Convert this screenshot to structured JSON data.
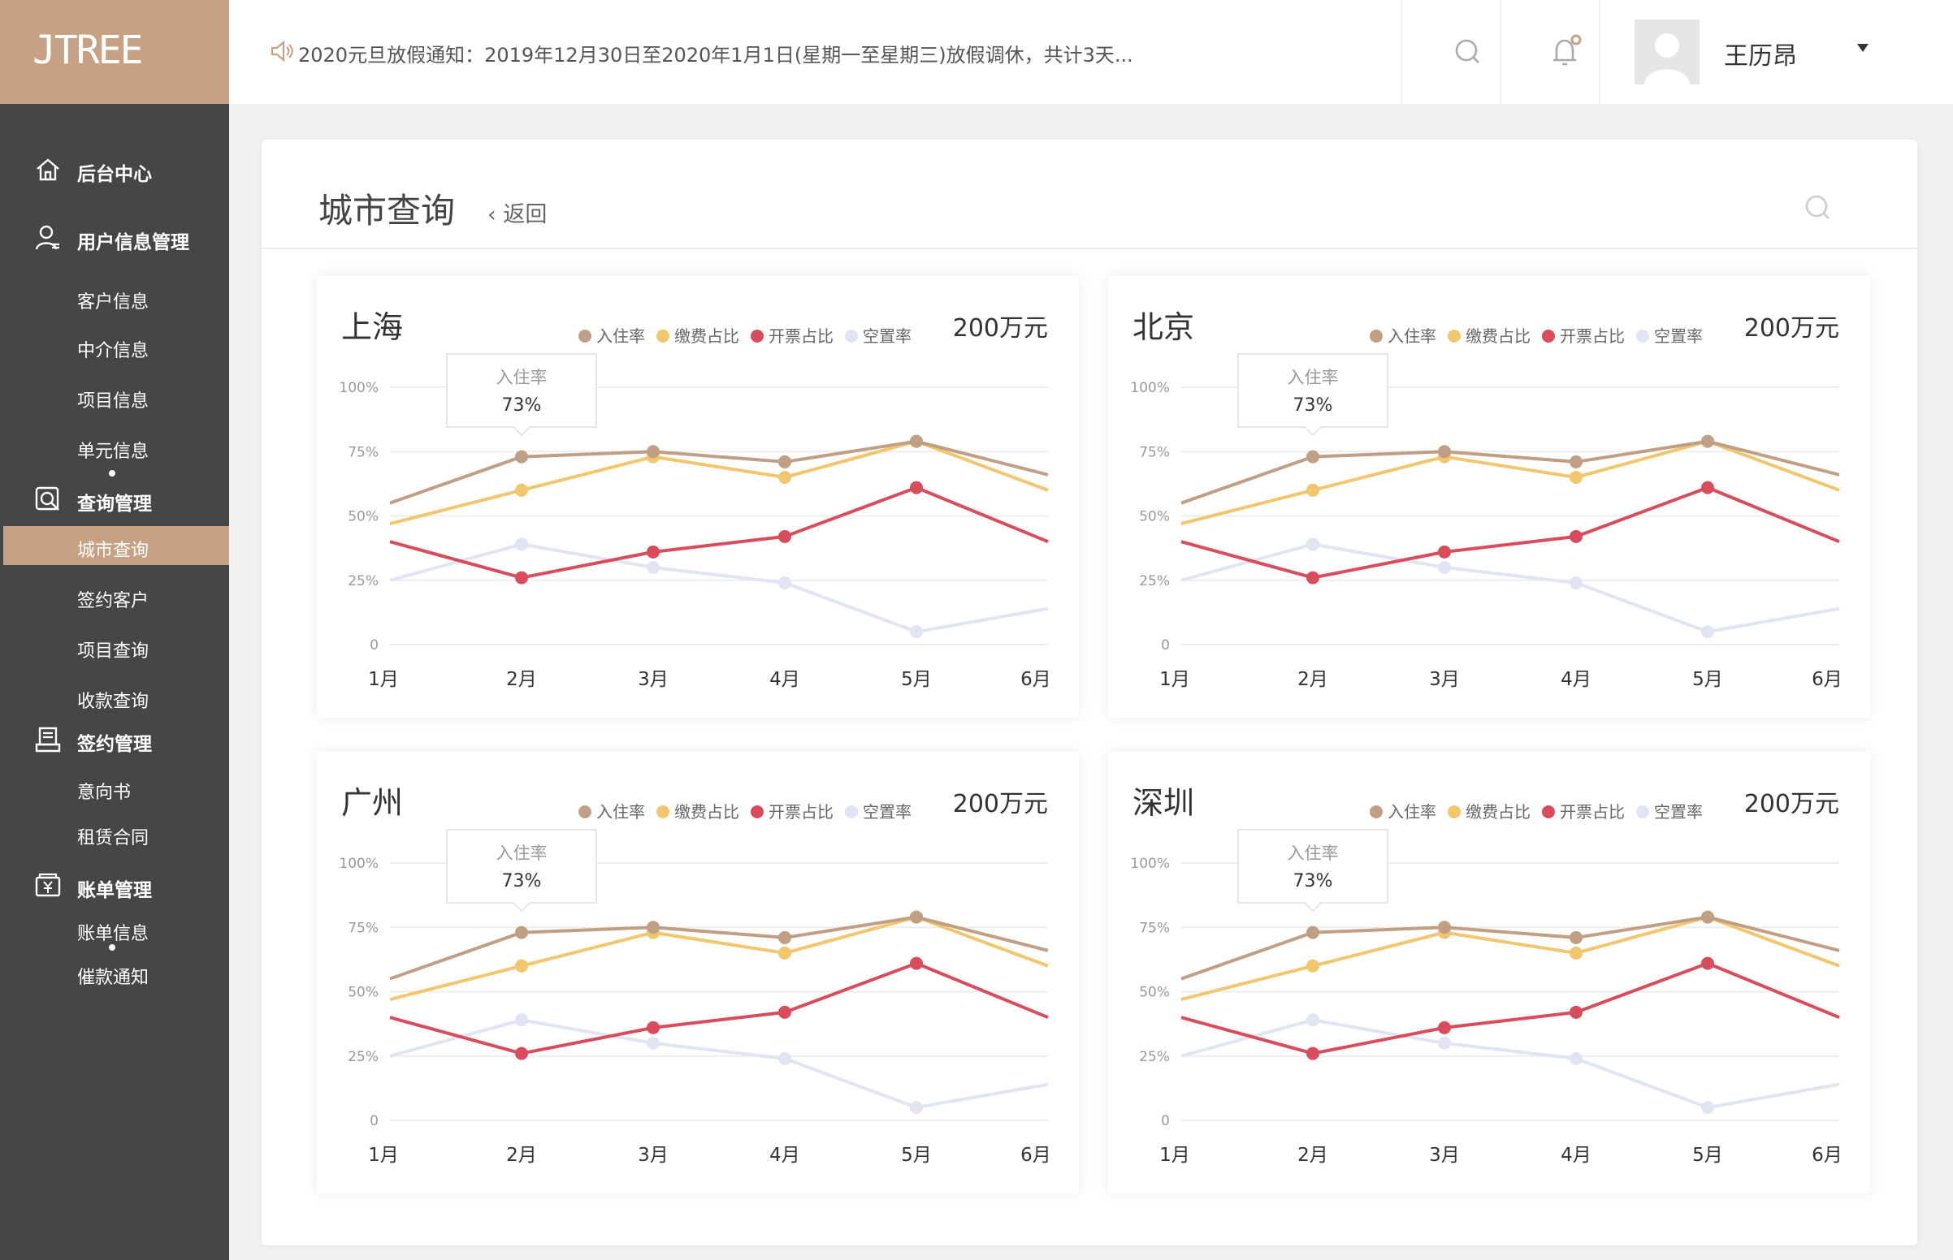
{
  "logo": {
    "text": "JTREE"
  },
  "sidebar": {
    "groups": [
      {
        "label": "后台中心",
        "icon": "home-icon"
      },
      {
        "label": "用户信息管理",
        "icon": "user-icon",
        "items": [
          "客户信息",
          "中介信息",
          "项目信息",
          "单元信息"
        ]
      },
      {
        "label": "查询管理",
        "icon": "query-icon",
        "items": [
          "城市查询",
          "签约客户",
          "项目查询",
          "收款查询"
        ],
        "active_item": "城市查询"
      },
      {
        "label": "签约管理",
        "icon": "contract-icon",
        "items": [
          "意向书",
          "租赁合同"
        ]
      },
      {
        "label": "账单管理",
        "icon": "bill-icon",
        "items": [
          "账单信息",
          "催款通知"
        ]
      }
    ]
  },
  "topbar": {
    "notice": "2020元旦放假通知：2019年12月30日至2020年1月1日(星期一至星期三)放假调休，共计3天...",
    "user_name": "王历昂"
  },
  "page": {
    "title": "城市查询",
    "back_label": "返回"
  },
  "legend": [
    {
      "name": "入住率",
      "color": "#c09f84"
    },
    {
      "name": "缴费占比",
      "color": "#f2c66c"
    },
    {
      "name": "开票占比",
      "color": "#d94c5c"
    },
    {
      "name": "空置率",
      "color": "#dfe5f3"
    }
  ],
  "cities": [
    {
      "name": "上海",
      "amount": "200万元"
    },
    {
      "name": "北京",
      "amount": "200万元"
    },
    {
      "name": "广州",
      "amount": "200万元"
    },
    {
      "name": "深圳",
      "amount": "200万元"
    }
  ],
  "chart_data": {
    "type": "line",
    "categories": [
      "1月",
      "2月",
      "3月",
      "4月",
      "5月",
      "6月"
    ],
    "y_ticks": [
      "0",
      "25%",
      "50%",
      "75%",
      "100%"
    ],
    "ylim": [
      0,
      100
    ],
    "grid": true,
    "legend_position": "top-right",
    "series": [
      {
        "name": "入住率",
        "color": "#c09f84",
        "values": [
          55,
          73,
          75,
          71,
          79,
          66
        ]
      },
      {
        "name": "缴费占比",
        "color": "#f2c66c",
        "values": [
          47,
          60,
          73,
          65,
          79,
          60
        ]
      },
      {
        "name": "开票占比",
        "color": "#d94c5c",
        "values": [
          40,
          26,
          36,
          42,
          61,
          40
        ]
      },
      {
        "name": "空置率",
        "color": "#dfe5f3",
        "values": [
          25,
          39,
          30,
          24,
          5,
          14
        ]
      }
    ],
    "tooltip": {
      "label": "入住率",
      "value": "73%",
      "category_index": 1
    }
  }
}
